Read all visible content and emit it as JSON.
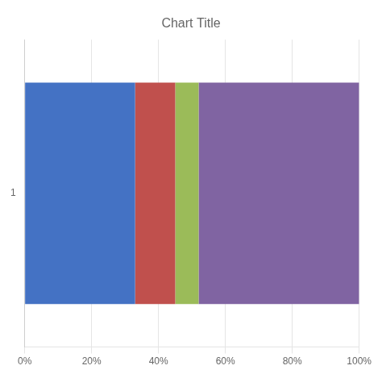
{
  "chart_data": {
    "type": "bar",
    "title": "Chart Title",
    "orientation": "horizontal",
    "stacked": true,
    "categories": [
      "1"
    ],
    "series": [
      {
        "color": "#4472C4",
        "values": [
          0.33
        ]
      },
      {
        "color": "#C0504D",
        "values": [
          0.12
        ]
      },
      {
        "color": "#9BBB59",
        "values": [
          0.07
        ]
      },
      {
        "color": "#8064A2",
        "values": [
          0.48
        ]
      }
    ],
    "xlim": [
      0.0,
      1.0
    ],
    "xticks": [
      {
        "value": 0.0,
        "label": "0%"
      },
      {
        "value": 0.2,
        "label": "20%"
      },
      {
        "value": 0.4,
        "label": "40%"
      },
      {
        "value": 0.6,
        "label": "60%"
      },
      {
        "value": 0.8,
        "label": "80%"
      },
      {
        "value": 1.0,
        "label": "100%"
      }
    ],
    "grid": true
  }
}
